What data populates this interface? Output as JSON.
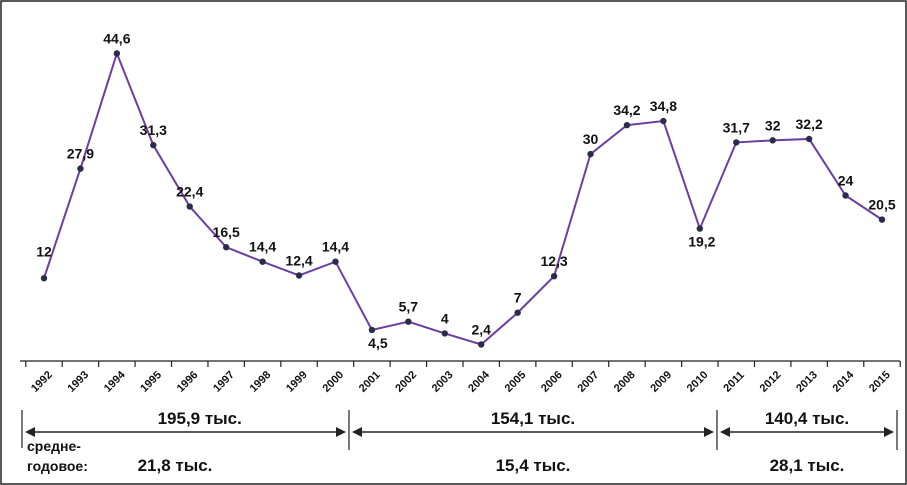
{
  "chart_data": {
    "type": "line",
    "x": [
      "1992",
      "1993",
      "1994",
      "1995",
      "1996",
      "1997",
      "1998",
      "1999",
      "2000",
      "2001",
      "2002",
      "2003",
      "2004",
      "2005",
      "2006",
      "2007",
      "2008",
      "2009",
      "2010",
      "2011",
      "2012",
      "2013",
      "2014",
      "2015"
    ],
    "series": [
      {
        "values": [
          12,
          27.9,
          44.6,
          31.3,
          22.4,
          16.5,
          14.4,
          12.4,
          14.4,
          4.5,
          5.7,
          4,
          2.4,
          7,
          12.3,
          30,
          34.2,
          34.8,
          19.2,
          31.7,
          32,
          32.2,
          24,
          20.5
        ],
        "data_labels": [
          "12",
          "27,9",
          "44,6",
          "31,3",
          "22,4",
          "16,5",
          "14,4",
          "12,4",
          "14,4",
          "4,5",
          "5,7",
          "4",
          "2,4",
          "7",
          "12,3",
          "30",
          "34,2",
          "34,8",
          "19,2",
          "31,7",
          "32",
          "32,2",
          "24",
          "20,5"
        ],
        "color": "#6a3fa3"
      }
    ],
    "ylim": [
      0,
      48
    ],
    "title": "",
    "xlabel": "",
    "ylabel": "",
    "grid": false,
    "periods": [
      {
        "start": "1992",
        "end": "2000",
        "total": "195,9 тыс.",
        "average": "21,8 тыс."
      },
      {
        "start": "2001",
        "end": "2010",
        "total": "154,1 тыс.",
        "average": "15,4 тыс."
      },
      {
        "start": "2011",
        "end": "2015",
        "total": "140,4 тыс.",
        "average": "28,1 тыс."
      }
    ],
    "average_caption": [
      "средне-",
      "годовое:"
    ]
  }
}
